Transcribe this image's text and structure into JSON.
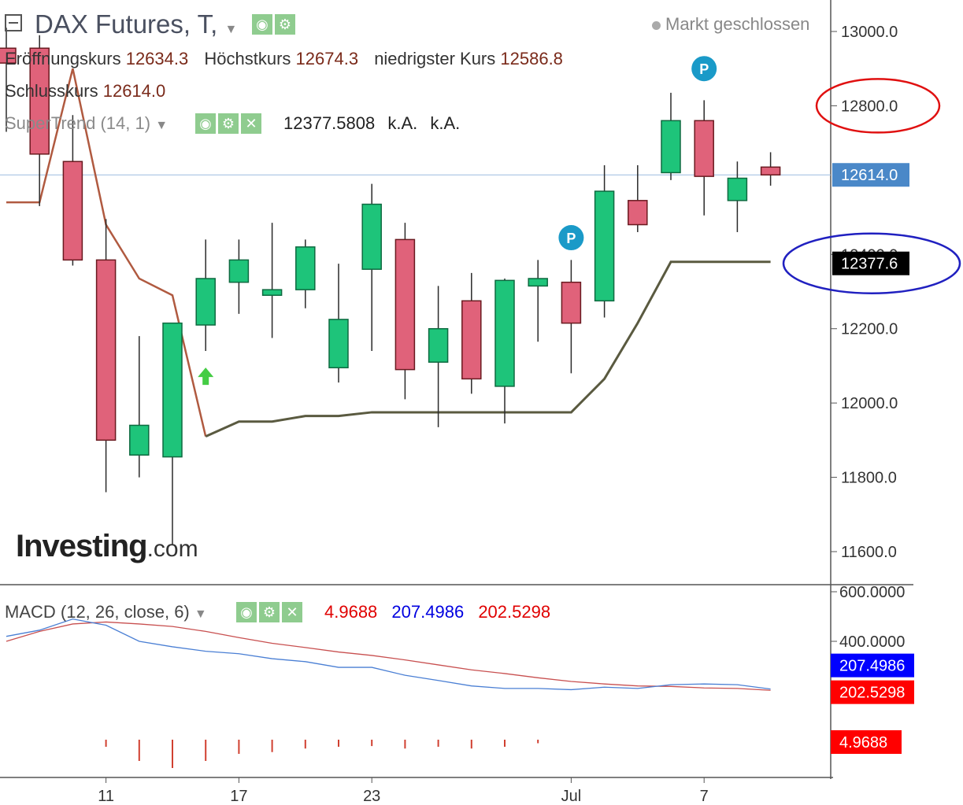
{
  "header": {
    "title": "DAX Futures, T,",
    "status": "Markt geschlossen",
    "ohlc": {
      "open_label": "Eröffnungskurs",
      "open": "12634.3",
      "high_label": "Höchstkurs",
      "high": "12674.3",
      "low_label": "niedrigster Kurs",
      "low": "12586.8",
      "close_label": "Schlusskurs",
      "close": "12614.0"
    },
    "supertrend": {
      "label": "SuperTrend (14, 1)",
      "value": "12377.5808",
      "extra1": "k.A.",
      "extra2": "k.A."
    },
    "macd": {
      "label": "MACD (12, 26, close, 6)",
      "hist": "4.9688",
      "macd": "207.4986",
      "signal": "202.5298"
    }
  },
  "logo": {
    "main": "Investing",
    "suffix": ".com"
  },
  "colors": {
    "up": "#1ec47a",
    "down": "#e0627a",
    "supertrend": "#5a5a40",
    "macd_line": "#4a7fd4",
    "signal_line": "#c85050",
    "hist": "#d04030",
    "price_tag": "#4a88c8",
    "st_tag": "#000000",
    "macd_tag": "#0000ff",
    "signal_tag": "#ff0000",
    "hist_tag": "#ff0000"
  },
  "chart_data": [
    {
      "type": "candlestick",
      "title": "DAX Futures, T,",
      "ylim": [
        11550,
        13080
      ],
      "yticks": [
        13000.0,
        12800.0,
        12400.0,
        12200.0,
        12000.0,
        11800.0,
        11600.0
      ],
      "ytick_labels": [
        "13000.0",
        "12800.0",
        "12400.0",
        "12200.0",
        "12000.0",
        "11800.0",
        "11600.0"
      ],
      "xtick_labels": [
        {
          "label": "11",
          "index": 3
        },
        {
          "label": "17",
          "index": 7
        },
        {
          "label": "23",
          "index": 11
        },
        {
          "label": "Jul",
          "index": 17
        },
        {
          "label": "7",
          "index": 21
        }
      ],
      "candles": [
        {
          "o": 12955,
          "h": 13010,
          "l": 12730,
          "c": 12915
        },
        {
          "o": 12955,
          "h": 12990,
          "l": 12530,
          "c": 12670
        },
        {
          "o": 12650,
          "h": 12775,
          "l": 12370,
          "c": 12385
        },
        {
          "o": 12385,
          "h": 12495,
          "l": 11760,
          "c": 11900
        },
        {
          "o": 11860,
          "h": 12180,
          "l": 11800,
          "c": 11940
        },
        {
          "o": 11855,
          "h": 12215,
          "l": 11620,
          "c": 12215
        },
        {
          "o": 12210,
          "h": 12440,
          "l": 12140,
          "c": 12335
        },
        {
          "o": 12325,
          "h": 12440,
          "l": 12240,
          "c": 12385
        },
        {
          "o": 12290,
          "h": 12485,
          "l": 12175,
          "c": 12305
        },
        {
          "o": 12305,
          "h": 12440,
          "l": 12255,
          "c": 12420
        },
        {
          "o": 12095,
          "h": 12375,
          "l": 12055,
          "c": 12225
        },
        {
          "o": 12360,
          "h": 12590,
          "l": 12140,
          "c": 12535
        },
        {
          "o": 12440,
          "h": 12485,
          "l": 12010,
          "c": 12090
        },
        {
          "o": 12110,
          "h": 12315,
          "l": 11935,
          "c": 12200
        },
        {
          "o": 12275,
          "h": 12350,
          "l": 12025,
          "c": 12065
        },
        {
          "o": 12045,
          "h": 12335,
          "l": 11945,
          "c": 12330
        },
        {
          "o": 12315,
          "h": 12385,
          "l": 12165,
          "c": 12335
        },
        {
          "o": 12325,
          "h": 12385,
          "l": 12080,
          "c": 12215
        },
        {
          "o": 12275,
          "h": 12640,
          "l": 12230,
          "c": 12570
        },
        {
          "o": 12545,
          "h": 12640,
          "l": 12460,
          "c": 12480
        },
        {
          "o": 12620,
          "h": 12835,
          "l": 12600,
          "c": 12760
        },
        {
          "o": 12760,
          "h": 12815,
          "l": 12505,
          "c": 12610
        },
        {
          "o": 12545,
          "h": 12650,
          "l": 12460,
          "c": 12605
        },
        {
          "o": 12635,
          "h": 12675,
          "l": 12585,
          "c": 12614
        }
      ],
      "supertrend": [
        12540,
        12540,
        12900,
        12480,
        12335,
        12290,
        11910,
        11950,
        11950,
        11965,
        11965,
        11975,
        11975,
        11975,
        11975,
        11975,
        11975,
        11975,
        12065,
        12215,
        12380,
        12380,
        12380,
        12380
      ],
      "pivot_markers": [
        {
          "index": 17,
          "value": 12445,
          "label": "P"
        },
        {
          "index": 21,
          "value": 12900,
          "label": "P"
        }
      ],
      "arrow_markers": [
        {
          "index": 6,
          "value": 12070,
          "dir": "up"
        }
      ],
      "last_price": 12614.0,
      "last_price_label": "12614.0",
      "supertrend_label": "12377.6",
      "annotations": [
        {
          "shape": "ellipse",
          "color": "red",
          "around": "12800.0"
        },
        {
          "shape": "ellipse",
          "color": "blue",
          "around": "12377.6"
        }
      ]
    },
    {
      "type": "macd",
      "title": "MACD (12, 26, close, 6)",
      "ylim": [
        -150,
        600
      ],
      "yticks": [
        600,
        400
      ],
      "ytick_labels": [
        "600.0000",
        "400.0000"
      ],
      "macd": [
        420,
        445,
        490,
        465,
        400,
        378,
        360,
        350,
        330,
        318,
        295,
        295,
        263,
        242,
        220,
        210,
        210,
        205,
        215,
        210,
        225,
        228,
        225,
        207.5
      ],
      "signal": [
        400,
        440,
        470,
        478,
        470,
        460,
        440,
        415,
        392,
        375,
        357,
        343,
        325,
        305,
        285,
        270,
        253,
        238,
        228,
        220,
        218,
        212,
        210,
        202.5
      ],
      "histogram": [
        70,
        60,
        22,
        -20,
        -60,
        -80,
        -60,
        -40,
        -35,
        -25,
        -20,
        -18,
        -25,
        -20,
        -25,
        -20,
        -10,
        0,
        2,
        0.5,
        6,
        8,
        8,
        4.97
      ],
      "labels": {
        "macd": "207.4986",
        "signal": "202.5298",
        "hist": "4.9688"
      }
    }
  ]
}
